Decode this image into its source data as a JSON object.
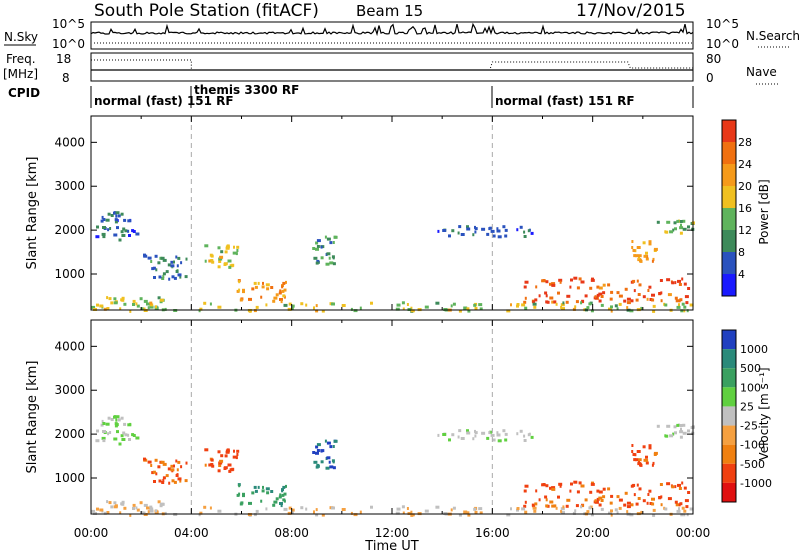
{
  "header": {
    "title": "South Pole Station (fitACF)",
    "beam": "Beam 15",
    "date": "17/Nov/2015"
  },
  "panels_top": {
    "nsky_label": "N.Sky",
    "nsky_ticks": [
      "10^5",
      "10^0"
    ],
    "nsearch_label": "N.Search",
    "freq_label": "Freq.",
    "freq_unit": "[MHz]",
    "freq_ticks": [
      "18",
      "8"
    ],
    "nave_label": "Nave",
    "nave_ticks": [
      "80",
      "0"
    ],
    "cpid_label": "CPID",
    "cpid_segments": [
      {
        "label": "normal (fast) 151 RF",
        "start": 0,
        "end": 4
      },
      {
        "label": "themis 3300 RF",
        "start": 4,
        "end": 16
      },
      {
        "label": "normal (fast) 151 RF",
        "start": 16,
        "end": 24
      }
    ]
  },
  "power_scale": {
    "title": "Power [dB]",
    "ticks": [
      "4",
      "8",
      "12",
      "16",
      "20",
      "24",
      "28"
    ],
    "colors": [
      "#1a1aff",
      "#2a52be",
      "#3d8a5a",
      "#5fb35c",
      "#f0c020",
      "#f59a1a",
      "#f07010",
      "#e83818",
      "#e01010"
    ]
  },
  "velocity_scale": {
    "title": "Velocity [m s⁻¹]",
    "ticks": [
      "1000",
      "500",
      "100",
      "25",
      "-25",
      "-100",
      "-500",
      "-1000"
    ],
    "colors": [
      "#2040c0",
      "#2a8a7a",
      "#3aa060",
      "#60d040",
      "#c0c0c0",
      "#f5a040",
      "#f08010",
      "#f04010",
      "#e01010"
    ]
  },
  "chart_data": {
    "type": "heatmap",
    "xlabel": "Time UT",
    "ylabel": "Slant Range [km]",
    "x_ticks": [
      "00:00",
      "04:00",
      "08:00",
      "12:00",
      "16:00",
      "20:00",
      "00:00"
    ],
    "y_ticks": [
      "1000",
      "2000",
      "3000",
      "4000"
    ],
    "xlim_hours": [
      0,
      24
    ],
    "ylim_km": [
      180,
      4600
    ],
    "regions": [
      {
        "t0": 0.0,
        "t1": 1.8,
        "r0": 1800,
        "r1": 2450,
        "p": 6,
        "v": 25
      },
      {
        "t0": 0.5,
        "t1": 2.8,
        "r0": 200,
        "r1": 500,
        "p": 14,
        "v": -25
      },
      {
        "t0": 2.0,
        "t1": 3.8,
        "r0": 900,
        "r1": 1500,
        "p": 8,
        "v": -300
      },
      {
        "t0": 4.5,
        "t1": 5.8,
        "r0": 1150,
        "r1": 1700,
        "p": 14,
        "v": -400
      },
      {
        "t0": 5.8,
        "t1": 7.8,
        "r0": 400,
        "r1": 900,
        "p": 20,
        "v": 300
      },
      {
        "t0": 8.8,
        "t1": 9.7,
        "r0": 1200,
        "r1": 1900,
        "p": 10,
        "v": 700
      },
      {
        "t0": 13.8,
        "t1": 17.8,
        "r0": 1880,
        "r1": 2120,
        "p": 6,
        "v": 15
      },
      {
        "t0": 17.2,
        "t1": 23.8,
        "r0": 380,
        "r1": 950,
        "p": 24,
        "v": -350
      },
      {
        "t0": 22.5,
        "t1": 24.0,
        "r0": 1950,
        "r1": 2250,
        "p": 12,
        "v": 15
      },
      {
        "t0": 21.5,
        "t1": 22.5,
        "r0": 1300,
        "r1": 1800,
        "p": 18,
        "v": -400
      },
      {
        "t0": 0.0,
        "t1": 24.0,
        "r0": 180,
        "r1": 380,
        "p": 14,
        "v": -25
      }
    ]
  }
}
